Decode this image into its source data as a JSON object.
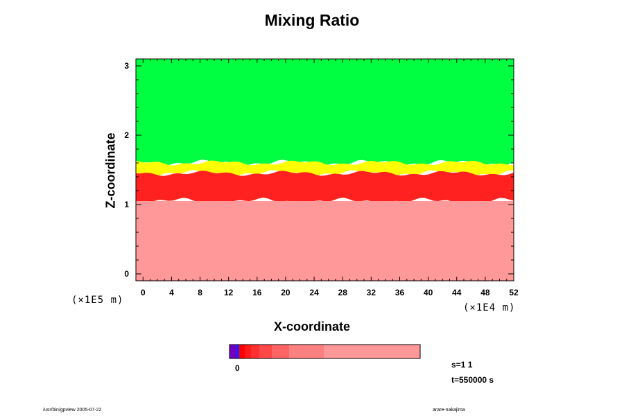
{
  "chart_data": {
    "type": "heatmap",
    "title": "Mixing Ratio",
    "xlabel": "X-coordinate",
    "ylabel": "Z-coordinate",
    "x_unit": "(×1E4 m)",
    "y_unit": "(×1E5 m)",
    "xlim": [
      -1,
      52
    ],
    "ylim": [
      -0.1,
      3.1
    ],
    "x_ticks": [
      "0",
      "4",
      "8",
      "12",
      "16",
      "20",
      "24",
      "28",
      "32",
      "36",
      "40",
      "44",
      "48",
      "52"
    ],
    "y_ticks": [
      "0",
      "1",
      "2",
      "3"
    ],
    "regions": [
      {
        "name": "upper",
        "z_from": 1.6,
        "z_to": 3.1,
        "color": "#00ff40"
      },
      {
        "name": "transition-yellow",
        "z_from": 1.45,
        "z_to": 1.6,
        "color": "#ffff00"
      },
      {
        "name": "mixing-layer",
        "z_from": 1.05,
        "z_to": 1.45,
        "color": "#ff2020"
      },
      {
        "name": "lower",
        "z_from": -0.1,
        "z_to": 1.05,
        "color": "#ff9999"
      }
    ],
    "colorbar": {
      "label": "0",
      "colors": [
        "#7000c0",
        "#2020ff",
        "#ff0000",
        "#ff1a1a",
        "#ff3030",
        "#ff4848",
        "#ff6464",
        "#ff8080",
        "#ff9999"
      ]
    },
    "annotations": {
      "s": "s=1 1",
      "t": "t=550000 s"
    }
  },
  "footer": {
    "left": "/usr/bin/gpview 2005-07-22",
    "right": "arare-nakajima"
  }
}
